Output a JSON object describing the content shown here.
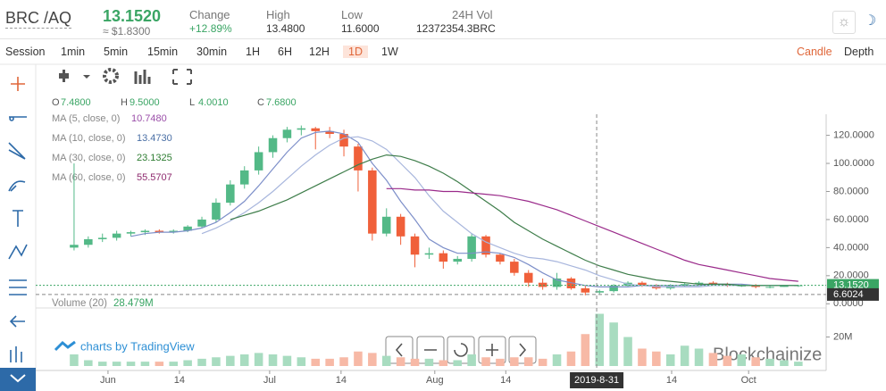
{
  "header": {
    "pair": "BRC /AQ",
    "price": "13.1520",
    "usd": "≈ $1.8300",
    "stats": [
      {
        "label": "Change",
        "value": "+12.89%"
      },
      {
        "label": "High",
        "value": "13.4800"
      },
      {
        "label": "Low",
        "value": "11.6000"
      },
      {
        "label": "24H Vol",
        "value": "12372354.3BRC"
      }
    ]
  },
  "toolbar": {
    "intervals": [
      "Session",
      "1min",
      "5min",
      "15min",
      "30min",
      "1H",
      "6H",
      "12H",
      "1D",
      "1W"
    ],
    "active": "1D",
    "views": [
      "Candle",
      "Depth"
    ]
  },
  "ohlc": [
    {
      "k": "O",
      "v": "7.4800"
    },
    {
      "k": "H",
      "v": "9.5000"
    },
    {
      "k": "L",
      "v": "4.0010"
    },
    {
      "k": "C",
      "v": "7.6800"
    }
  ],
  "indicators": [
    {
      "name": "MA (5, close, 0)",
      "value": "10.7480",
      "color": "#9b4fa9"
    },
    {
      "name": "MA (10, close, 0)",
      "value": "13.4730",
      "color": "#4a6fa5"
    },
    {
      "name": "MA (30, close, 0)",
      "value": "23.1325",
      "color": "#2e7d32"
    },
    {
      "name": "MA (60, close, 0)",
      "value": "55.5707",
      "color": "#8e2a6e"
    }
  ],
  "volume_legend": {
    "name": "Volume (20)",
    "value": "28.479M"
  },
  "branding": "charts by TradingView",
  "watermark": "Blockchainize",
  "chart_data": {
    "type": "candlestick",
    "open": [
      40,
      42,
      46,
      47,
      50,
      51,
      52,
      51,
      52,
      55,
      60,
      72,
      85,
      95,
      108,
      118,
      124,
      125,
      123,
      121,
      112,
      95,
      50,
      62,
      48,
      35,
      36,
      30,
      32,
      48,
      35,
      30,
      22,
      15,
      12,
      18,
      11,
      8,
      9,
      13,
      15,
      13,
      11,
      13,
      14,
      15,
      14,
      13,
      13,
      12,
      12,
      13
    ],
    "high": [
      100,
      48,
      50,
      52,
      52,
      53,
      53,
      53,
      56,
      62,
      75,
      88,
      98,
      112,
      120,
      126,
      127,
      126,
      126,
      124,
      114,
      97,
      68,
      64,
      50,
      40,
      38,
      34,
      50,
      49,
      36,
      32,
      24,
      18,
      22,
      19,
      13,
      10,
      14,
      16,
      16,
      14,
      14,
      15,
      16,
      16,
      15,
      14,
      14,
      13,
      13,
      13.5
    ],
    "low": [
      38,
      40,
      44,
      45,
      48,
      49,
      50,
      50,
      51,
      54,
      58,
      70,
      82,
      92,
      104,
      115,
      120,
      110,
      118,
      105,
      80,
      45,
      48,
      42,
      26,
      32,
      25,
      28,
      30,
      33,
      28,
      20,
      12,
      10,
      10,
      10,
      6,
      7,
      8,
      12,
      12,
      10,
      10,
      12,
      13,
      13,
      12,
      12,
      11,
      11,
      12,
      12
    ],
    "close": [
      42,
      46,
      47,
      50,
      51,
      52,
      51,
      52,
      55,
      60,
      72,
      85,
      95,
      108,
      118,
      124,
      125,
      123,
      121,
      112,
      95,
      50,
      62,
      48,
      35,
      36,
      30,
      32,
      48,
      35,
      30,
      22,
      15,
      12,
      18,
      11,
      8,
      9,
      13,
      15,
      13,
      11,
      13,
      14,
      15,
      14,
      13,
      13,
      12,
      12,
      13,
      13.152
    ],
    "volume": [
      8000000,
      4000000,
      3000000,
      3000000,
      3000000,
      3000000,
      3000000,
      3000000,
      4000000,
      5000000,
      6000000,
      7000000,
      8000000,
      9000000,
      8000000,
      7000000,
      6000000,
      5000000,
      5000000,
      6000000,
      10000000,
      9000000,
      7000000,
      6000000,
      5000000,
      5000000,
      4000000,
      4000000,
      8000000,
      6000000,
      5000000,
      6000000,
      6000000,
      5000000,
      8000000,
      10000000,
      22000000,
      36000000,
      30000000,
      20000000,
      12000000,
      10000000,
      8000000,
      14000000,
      12000000,
      9000000,
      7000000,
      8000000,
      6000000,
      5000000,
      4000000,
      3000000
    ],
    "up_color": "#53b987",
    "down_color": "#f0603a",
    "up_volume_color": "#a8dcc0",
    "down_volume_color": "#f7b9a6",
    "series": [
      {
        "name": "MA (5, close, 0)",
        "color": "#7d8fc9",
        "values": [
          null,
          null,
          null,
          null,
          48,
          50,
          51,
          51,
          52,
          54,
          58,
          65,
          73,
          84,
          96,
          108,
          118,
          122,
          123,
          121,
          115,
          100,
          88,
          73,
          60,
          46,
          40,
          36,
          36,
          37,
          36,
          33,
          28,
          22,
          17,
          15,
          13,
          12,
          12,
          12,
          13,
          13,
          13,
          13,
          13,
          14,
          14,
          14,
          13,
          13,
          13,
          13
        ]
      },
      {
        "name": "MA (10, close, 0)",
        "color": "#a8b6dd",
        "values": [
          null,
          null,
          null,
          null,
          null,
          null,
          null,
          null,
          null,
          50,
          54,
          59,
          65,
          72,
          80,
          89,
          98,
          106,
          113,
          118,
          119,
          116,
          110,
          100,
          90,
          77,
          66,
          58,
          50,
          44,
          40,
          36,
          33,
          32,
          30,
          27,
          24,
          20,
          17,
          14,
          13,
          12,
          12,
          12,
          12,
          13,
          13,
          13,
          13,
          13,
          13,
          13
        ]
      },
      {
        "name": "MA (30, close, 0)",
        "color": "#3e7d4a",
        "values": [
          null,
          null,
          null,
          null,
          null,
          null,
          null,
          null,
          null,
          null,
          null,
          60,
          63,
          66,
          70,
          74,
          79,
          84,
          89,
          94,
          99,
          103,
          106,
          105,
          102,
          98,
          93,
          87,
          80,
          73,
          66,
          58,
          52,
          46,
          41,
          36,
          31,
          27,
          24,
          21,
          19,
          17,
          16,
          15,
          14,
          14,
          14,
          13,
          13,
          13,
          13,
          13
        ]
      },
      {
        "name": "MA (60, close, 0)",
        "color": "#9a2a8a",
        "values": [
          null,
          null,
          null,
          null,
          null,
          null,
          null,
          null,
          null,
          null,
          null,
          null,
          null,
          null,
          null,
          null,
          null,
          null,
          null,
          null,
          null,
          null,
          82,
          82,
          81,
          81,
          80,
          80,
          79,
          78,
          77,
          75,
          73,
          70,
          67,
          63,
          59,
          55,
          51,
          47,
          43,
          39,
          35,
          31,
          28,
          26,
          24,
          22,
          20,
          18,
          17,
          16
        ]
      }
    ],
    "xlim": [
      -2.7,
      52.96
    ],
    "ylim": [
      -3,
      135
    ],
    "yticks": [
      {
        "value": 0,
        "label": "0.0000"
      },
      {
        "value": 20,
        "label": "20.0000"
      },
      {
        "value": 40,
        "label": "40.0000"
      },
      {
        "value": 60,
        "label": "60.0000"
      },
      {
        "value": 80,
        "label": "80.0000"
      },
      {
        "value": 100,
        "label": "100.0000"
      },
      {
        "value": 120,
        "label": "120.0000"
      }
    ],
    "xticks": [
      {
        "value": 2.39,
        "label": "Jun"
      },
      {
        "value": 7.42,
        "label": "14"
      },
      {
        "value": 13.77,
        "label": "Jul"
      },
      {
        "value": 18.8,
        "label": "14"
      },
      {
        "value": 25.4,
        "label": "Aug"
      },
      {
        "value": 30.4,
        "label": "14"
      },
      {
        "value": 42.08,
        "label": "14"
      },
      {
        "value": 47.5,
        "label": "Oct"
      }
    ],
    "volume_ylim": [
      0,
      40000000
    ],
    "volume_ticks": [
      {
        "value": 20000000,
        "label": "20M"
      }
    ],
    "last_price": {
      "value": 13.152,
      "label": "13.1520"
    },
    "crosshair": {
      "x": {
        "value": 36.8,
        "label": "2019-8-31"
      },
      "y": {
        "value": 6.6024,
        "label": "6.6024"
      }
    }
  }
}
